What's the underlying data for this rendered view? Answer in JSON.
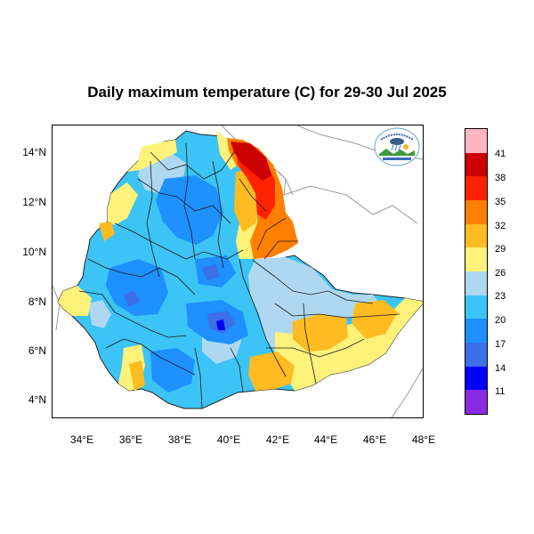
{
  "title": "Daily maximum temperature (C) for 29-30 Jul 2025",
  "lat_ticks": [
    "14°N",
    "12°N",
    "10°N",
    "8°N",
    "6°N",
    "4°N"
  ],
  "lon_ticks": [
    "34°E",
    "36°E",
    "38°E",
    "40°E",
    "42°E",
    "44°E",
    "46°E",
    "48°E"
  ],
  "legend": {
    "labels": [
      "41",
      "38",
      "35",
      "32",
      "29",
      "26",
      "23",
      "20",
      "17",
      "14",
      "11"
    ],
    "colors": [
      "#ffb6c1",
      "#cc0000",
      "#ff2200",
      "#ff7f00",
      "#ffbb22",
      "#fff27a",
      "#afd8f0",
      "#3bc4f5",
      "#1e90ff",
      "#3c6fe8",
      "#0000ff",
      "#8a2be2"
    ]
  },
  "colors": {
    "warm_yellow": "#fff27a",
    "orange": "#ffbb22",
    "dark_orange": "#ff7f00",
    "red": "#ff2200",
    "dark_red": "#cc0000",
    "light_blue": "#afd8f0",
    "cyan": "#3bc4f5",
    "blue": "#1e90ff",
    "deep_blue": "#3c6fe8",
    "border_gray": "#9a9a9a"
  },
  "logo": {
    "icon": "meteorology-agency-logo-icon"
  }
}
